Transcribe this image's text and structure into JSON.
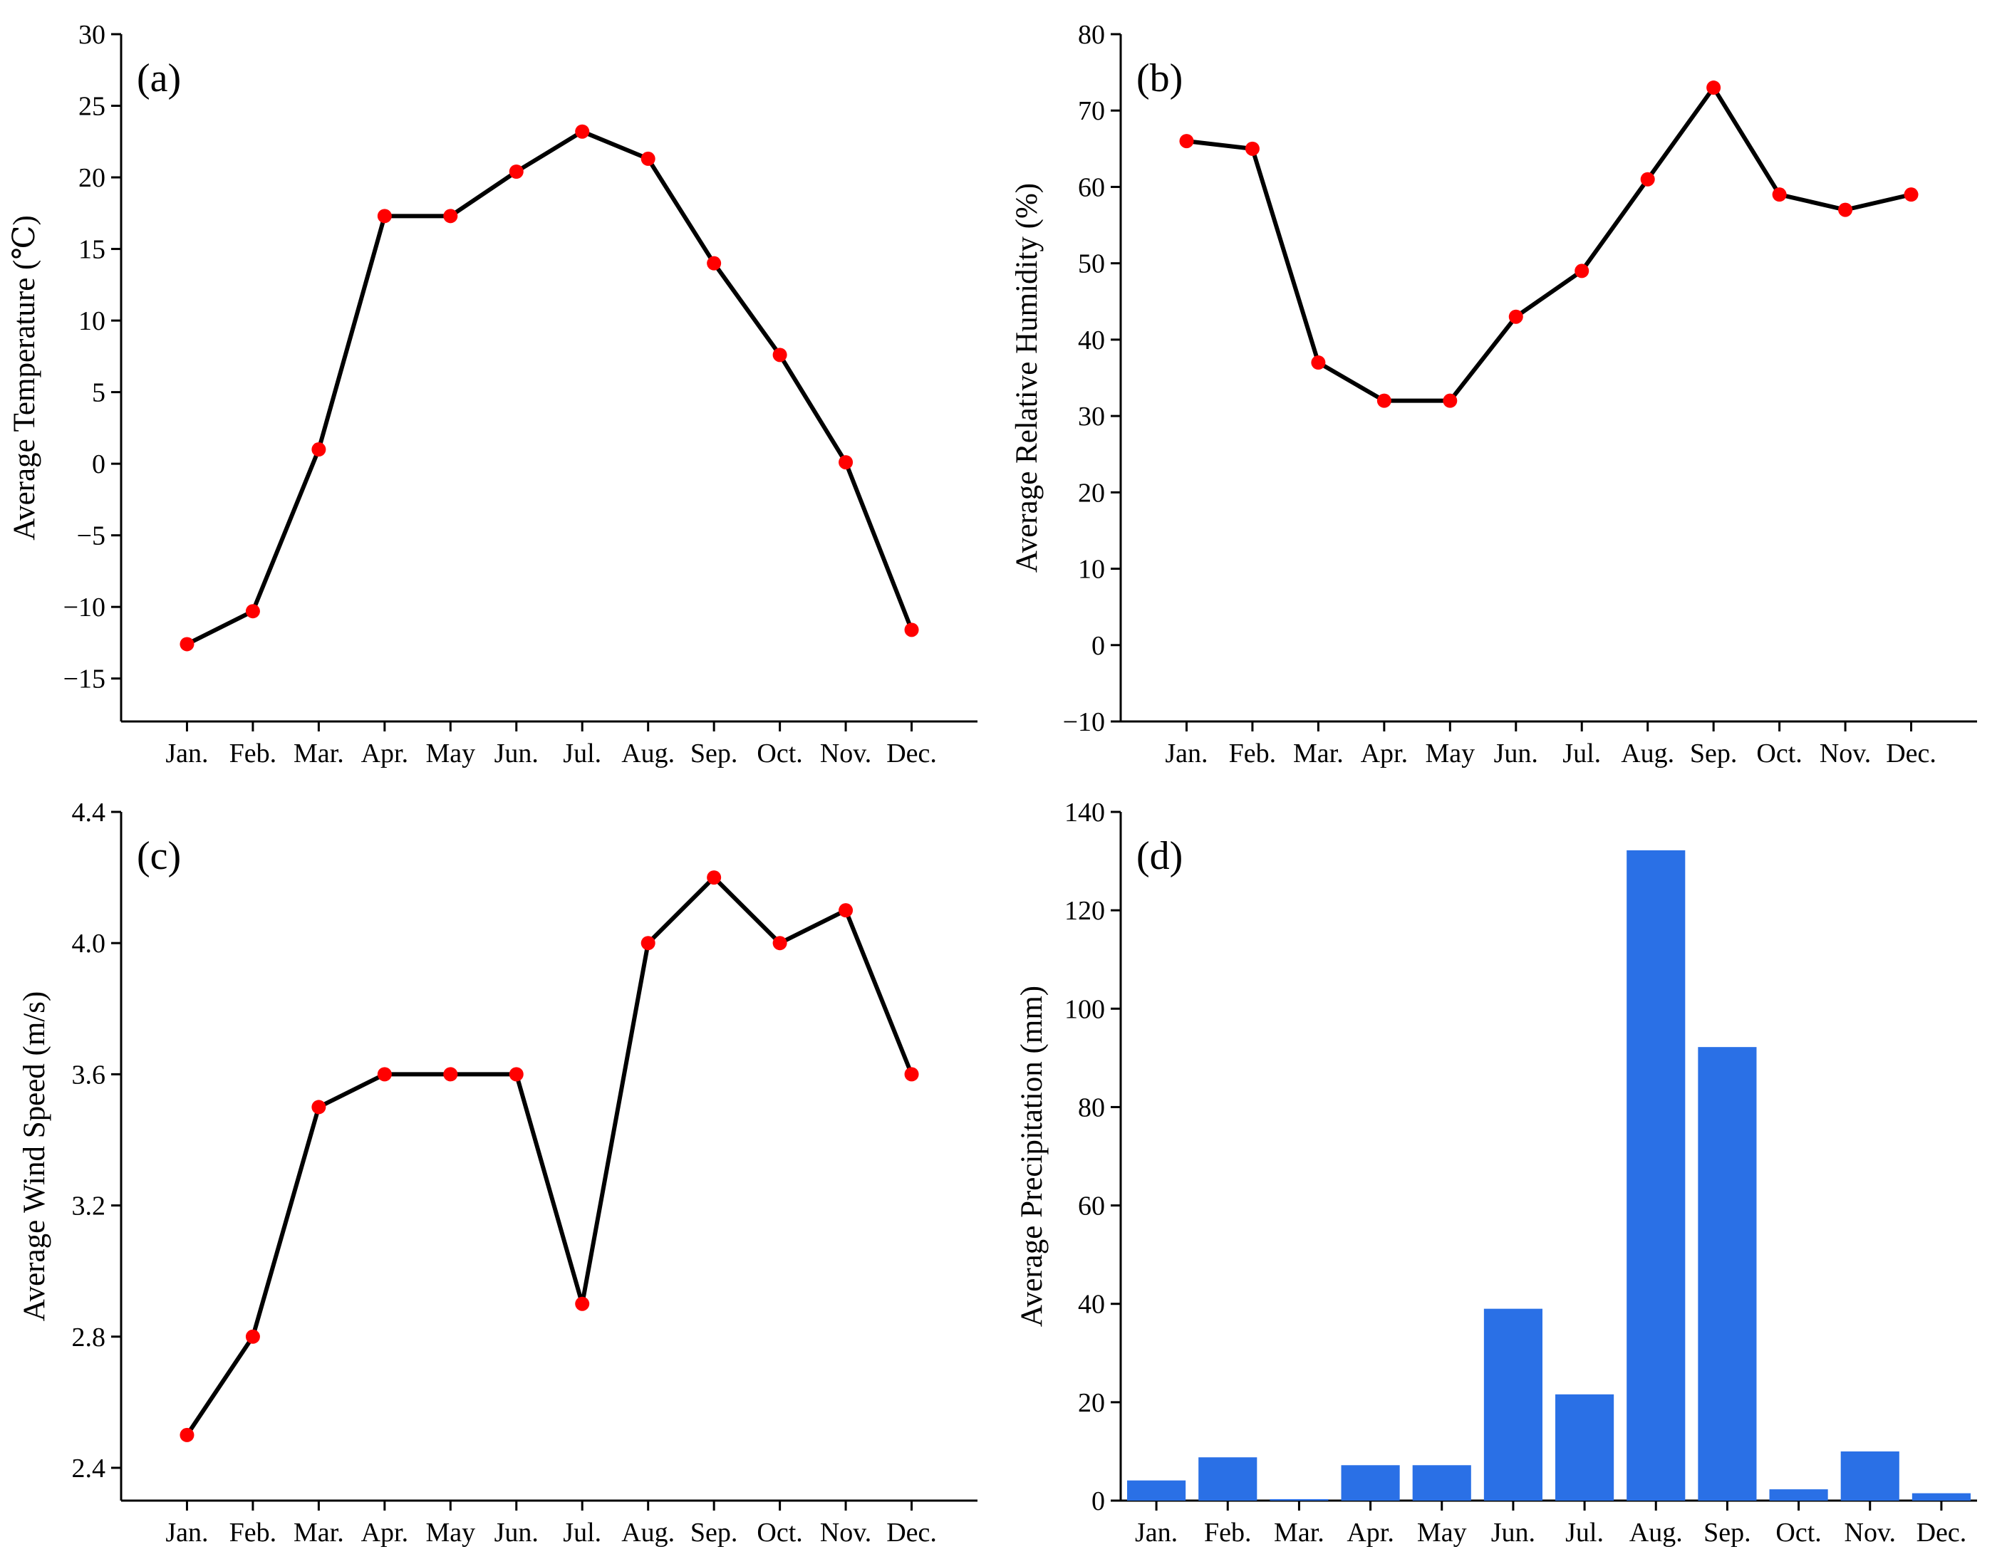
{
  "colors": {
    "line": "#000000",
    "marker": "#ff0000",
    "bar": "#2a70e6"
  },
  "chart_data": [
    {
      "panel": "(a)",
      "type": "line",
      "categories": [
        "Jan.",
        "Feb.",
        "Mar.",
        "Apr.",
        "May",
        "Jun.",
        "Jul.",
        "Aug.",
        "Sep.",
        "Oct.",
        "Nov.",
        "Dec."
      ],
      "values": [
        -12.6,
        -10.3,
        1.0,
        17.3,
        17.3,
        20.4,
        23.2,
        21.3,
        14.0,
        7.6,
        0.1,
        -11.6
      ],
      "ylabel": "Average Temperature (℃)",
      "ylim": [
        -18,
        30
      ],
      "yticks": [
        -15,
        -10,
        -5,
        0,
        5,
        10,
        15,
        20,
        25,
        30
      ],
      "ytick_labels": [
        "−15",
        "−10",
        "−5",
        "0",
        "5",
        "10",
        "15",
        "20",
        "25",
        "30"
      ],
      "grid": false
    },
    {
      "panel": "(b)",
      "type": "line",
      "categories": [
        "Jan.",
        "Feb.",
        "Mar.",
        "Apr.",
        "May",
        "Jun.",
        "Jul.",
        "Aug.",
        "Sep.",
        "Oct.",
        "Nov.",
        "Dec."
      ],
      "values": [
        66,
        65,
        37,
        32,
        32,
        43,
        49,
        61,
        73,
        59,
        57,
        59
      ],
      "ylabel": "Average Relative Humidity (%)",
      "ylim": [
        -10,
        80
      ],
      "yticks": [
        -10,
        0,
        10,
        20,
        30,
        40,
        50,
        60,
        70,
        80
      ],
      "ytick_labels": [
        "−10",
        "0",
        "10",
        "20",
        "30",
        "40",
        "50",
        "60",
        "70",
        "80"
      ],
      "grid": false
    },
    {
      "panel": "(c)",
      "type": "line",
      "categories": [
        "Jan.",
        "Feb.",
        "Mar.",
        "Apr.",
        "May",
        "Jun.",
        "Jul.",
        "Aug.",
        "Sep.",
        "Oct.",
        "Nov.",
        "Dec."
      ],
      "values": [
        2.5,
        2.8,
        3.5,
        3.6,
        3.6,
        3.6,
        2.9,
        4.0,
        4.2,
        4.0,
        4.1,
        3.6
      ],
      "ylabel": "Average Wind Speed (m/s)",
      "ylim": [
        2.3,
        4.4
      ],
      "yticks": [
        2.4,
        2.8,
        3.2,
        3.6,
        4.0,
        4.4
      ],
      "ytick_labels": [
        "2.4",
        "2.8",
        "3.2",
        "3.6",
        "4.0",
        "4.4"
      ],
      "grid": false
    },
    {
      "panel": "(d)",
      "type": "bar",
      "categories": [
        "Jan.",
        "Feb.",
        "Mar.",
        "Apr.",
        "May",
        "Jun.",
        "Jul.",
        "Aug.",
        "Sep.",
        "Oct.",
        "Nov.",
        "Dec."
      ],
      "values": [
        4.1,
        8.8,
        0.3,
        7.2,
        7.2,
        39.0,
        21.6,
        132.2,
        92.2,
        2.3,
        10.0,
        1.5
      ],
      "ylabel": "Average Precipitation (mm)",
      "ylim": [
        0,
        140
      ],
      "yticks": [
        0,
        20,
        40,
        60,
        80,
        100,
        120,
        140
      ],
      "ytick_labels": [
        "0",
        "20",
        "40",
        "60",
        "80",
        "100",
        "120",
        "140"
      ],
      "grid": false
    }
  ]
}
